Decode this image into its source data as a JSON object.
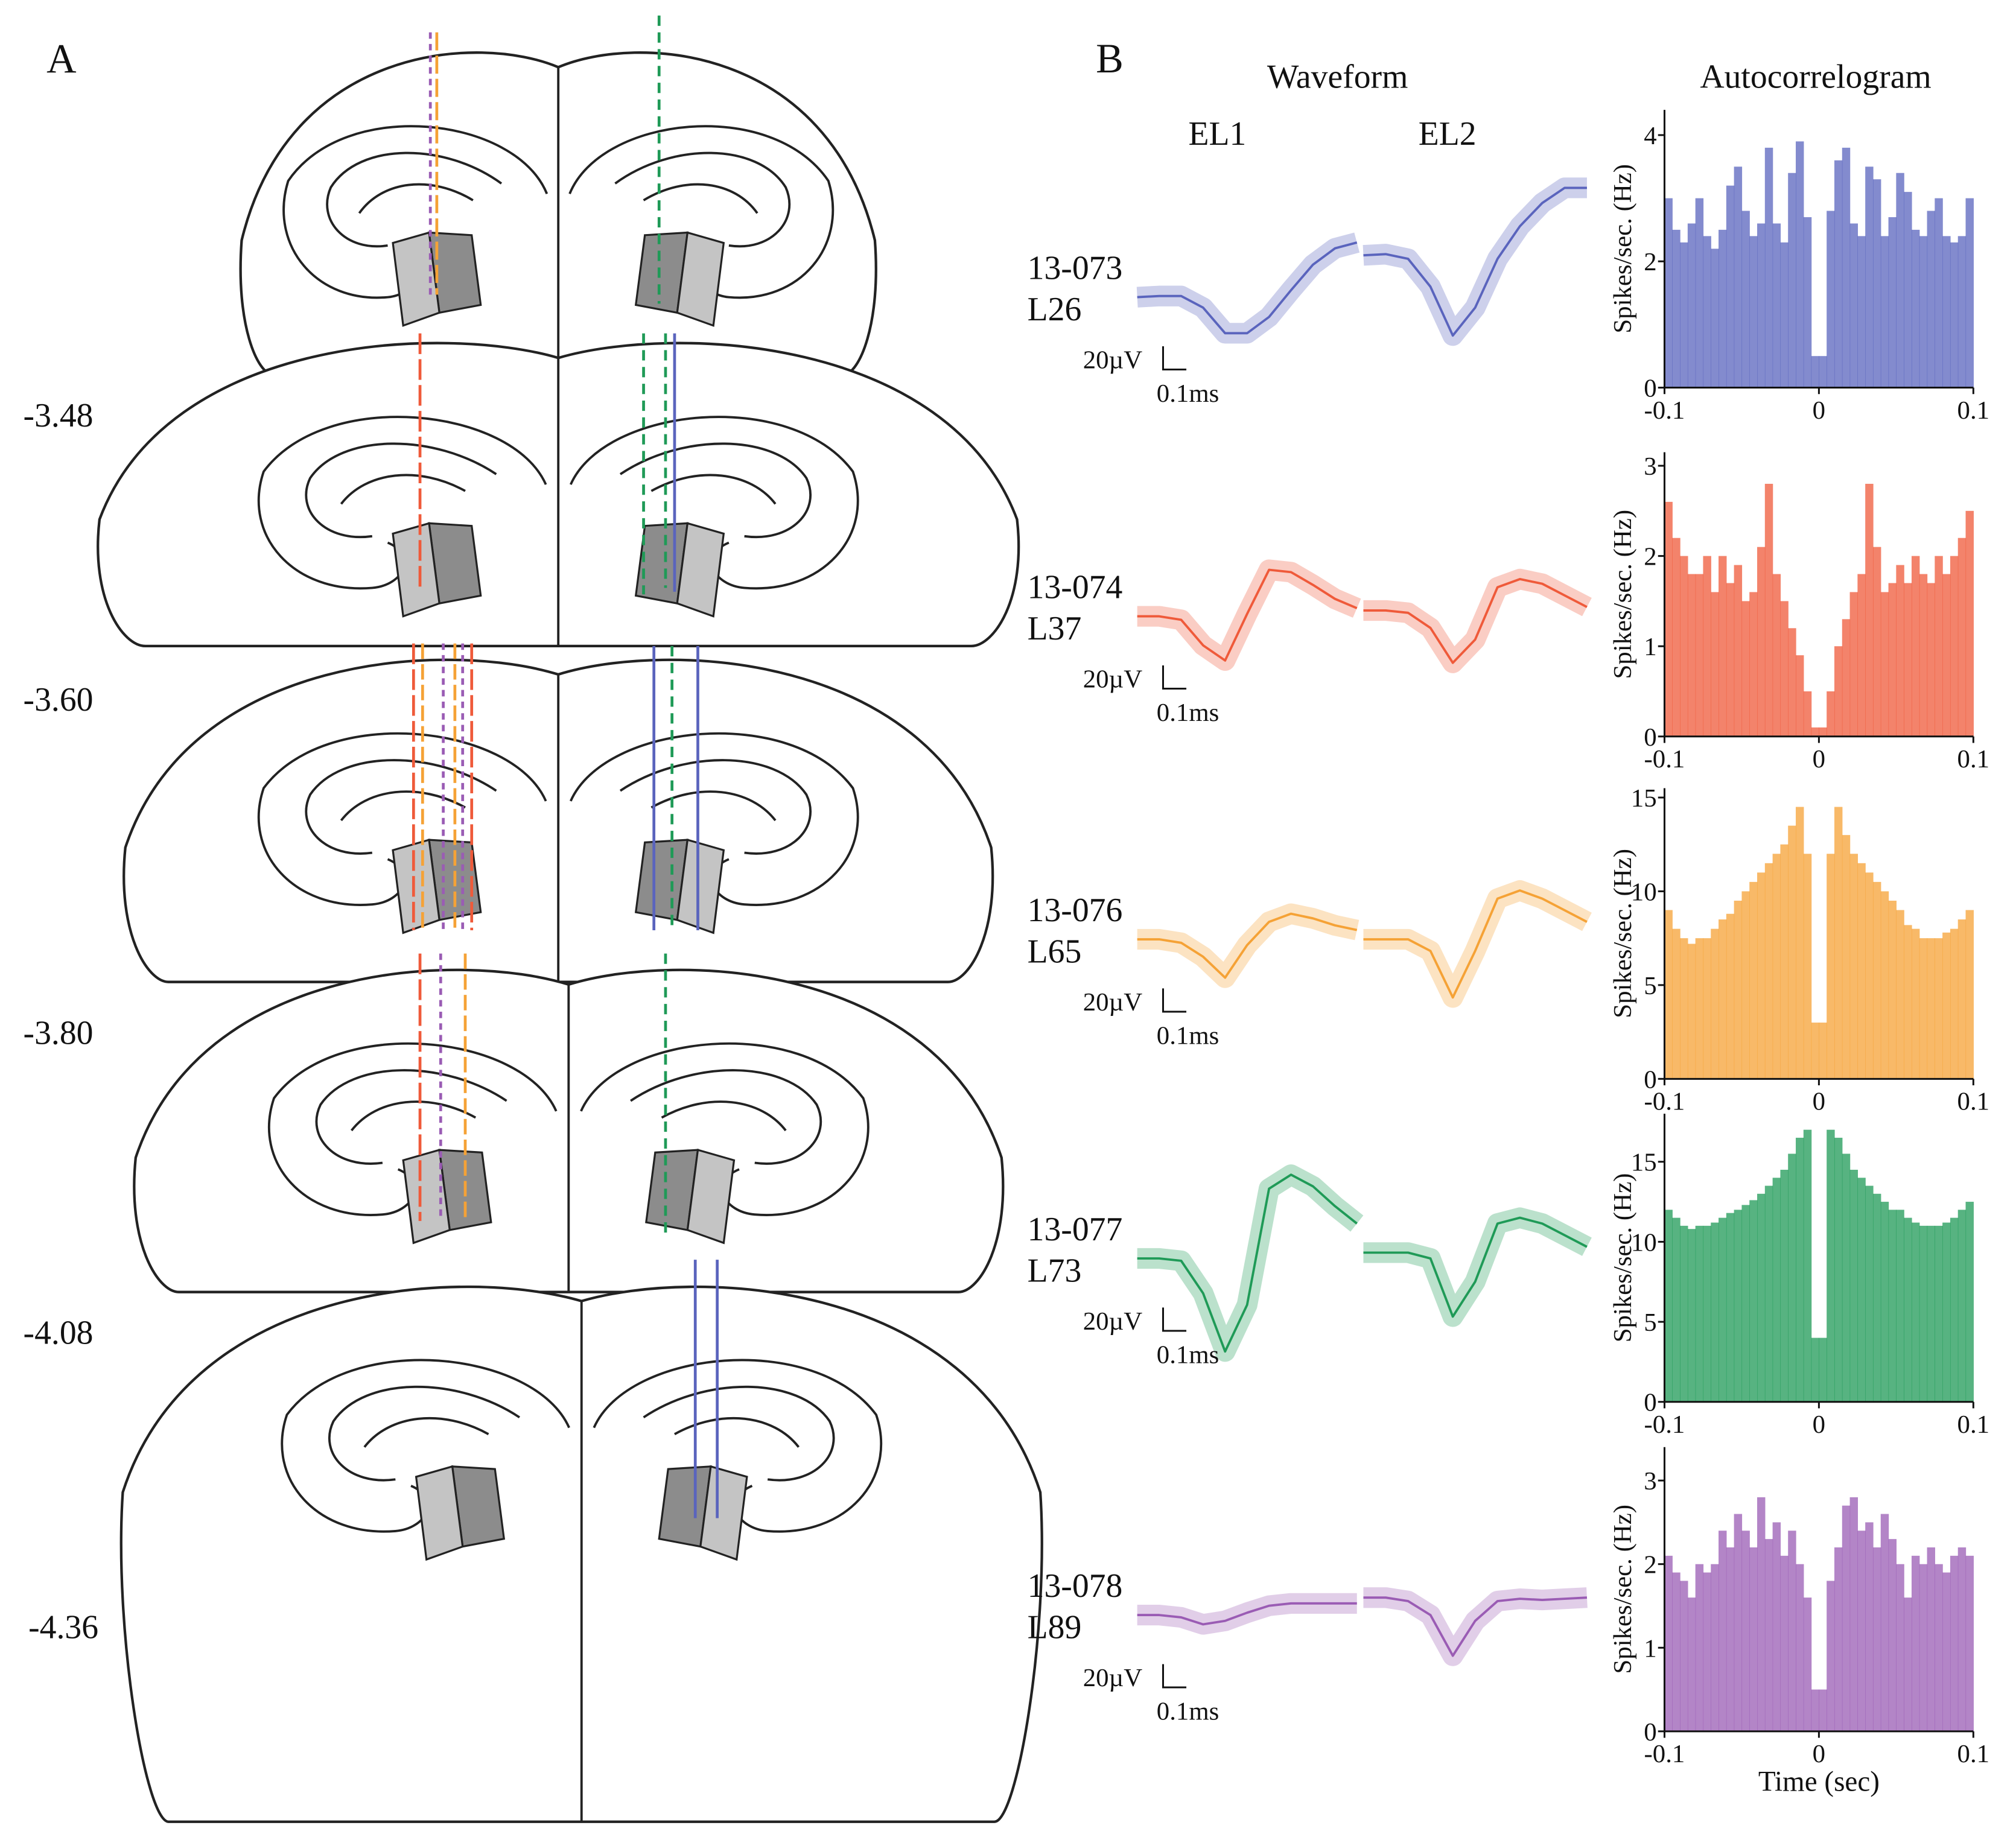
{
  "panel_a": {
    "label": "A",
    "depths": [
      "-3.48",
      "-3.60",
      "-3.80",
      "-4.08",
      "-4.36"
    ]
  },
  "panel_b": {
    "label": "B",
    "waveform_title": "Waveform",
    "electrodes": [
      "EL1",
      "EL2"
    ],
    "autocorrelogram_title": "Autocorrelogram",
    "scale_bar": {
      "voltage": "20µV",
      "time": "0.1ms"
    },
    "units": [
      {
        "id": "13-073",
        "label": "L26",
        "waveform_el1": [
          0,
          1,
          1,
          -9,
          -31,
          -31,
          -17,
          6,
          28,
          42,
          47
        ],
        "waveform_el2": [
          36,
          37,
          33,
          9,
          -33,
          -9,
          33,
          61,
          81,
          94,
          94
        ]
      },
      {
        "id": "13-074",
        "label": "L37",
        "waveform_el1": [
          0,
          0,
          -3,
          -25,
          -38,
          2,
          40,
          38,
          27,
          15,
          7
        ],
        "waveform_el2": [
          5,
          5,
          3,
          -10,
          -40,
          -20,
          25,
          32,
          28,
          18,
          8
        ]
      },
      {
        "id": "13-076",
        "label": "L65",
        "waveform_el1": [
          0,
          0,
          -3,
          -15,
          -33,
          -5,
          15,
          22,
          18,
          12,
          8
        ],
        "waveform_el2": [
          0,
          0,
          0,
          -10,
          -50,
          -10,
          35,
          42,
          35,
          25,
          15
        ]
      },
      {
        "id": "13-077",
        "label": "L73",
        "waveform_el1": [
          0,
          0,
          -2,
          -30,
          -80,
          -40,
          60,
          72,
          62,
          45,
          30
        ],
        "waveform_el2": [
          5,
          5,
          5,
          0,
          -50,
          -20,
          30,
          35,
          30,
          20,
          10
        ]
      },
      {
        "id": "13-078",
        "label": "L89",
        "waveform_el1": [
          0,
          0,
          -2,
          -8,
          -5,
          2,
          8,
          10,
          10,
          10,
          10
        ],
        "waveform_el2": [
          15,
          15,
          12,
          0,
          -35,
          -5,
          12,
          14,
          13,
          14,
          15
        ]
      }
    ]
  },
  "chart_data": [
    {
      "type": "histogram",
      "color": "#5a64bd",
      "y_label": "Spikes/sec. (Hz)",
      "bins": [
        -0.1,
        -0.095,
        -0.09,
        -0.085,
        -0.08,
        -0.075,
        -0.07,
        -0.065,
        -0.06,
        -0.055,
        -0.05,
        -0.045,
        -0.04,
        -0.035,
        -0.03,
        -0.025,
        -0.02,
        -0.015,
        -0.01,
        -0.005,
        0,
        0.005,
        0.01,
        0.015,
        0.02,
        0.025,
        0.03,
        0.035,
        0.04,
        0.045,
        0.05,
        0.055,
        0.06,
        0.065,
        0.07,
        0.075,
        0.08,
        0.085,
        0.09,
        0.095,
        0.1
      ],
      "values": [
        3.0,
        2.5,
        2.3,
        2.6,
        3.0,
        2.4,
        2.2,
        2.5,
        3.2,
        3.5,
        2.8,
        2.4,
        2.6,
        3.8,
        2.6,
        2.3,
        3.4,
        3.9,
        2.7,
        0.5,
        0.5,
        2.8,
        3.6,
        3.8,
        2.6,
        2.4,
        3.5,
        3.3,
        2.4,
        2.7,
        3.4,
        3.1,
        2.5,
        2.4,
        2.8,
        3.0,
        2.4,
        2.3,
        2.4,
        3.0
      ],
      "xlim": [
        -0.1,
        0.1
      ],
      "xticks": [
        -0.1,
        0,
        0.1
      ],
      "ylim": [
        0,
        4.4
      ],
      "yticks": [
        0,
        2,
        4
      ]
    },
    {
      "type": "histogram",
      "color": "#ef5a3a",
      "y_label": "Spikes/sec. (Hz)",
      "bins": [
        -0.1,
        -0.095,
        -0.09,
        -0.085,
        -0.08,
        -0.075,
        -0.07,
        -0.065,
        -0.06,
        -0.055,
        -0.05,
        -0.045,
        -0.04,
        -0.035,
        -0.03,
        -0.025,
        -0.02,
        -0.015,
        -0.01,
        -0.005,
        0,
        0.005,
        0.01,
        0.015,
        0.02,
        0.025,
        0.03,
        0.035,
        0.04,
        0.045,
        0.05,
        0.055,
        0.06,
        0.065,
        0.07,
        0.075,
        0.08,
        0.085,
        0.09,
        0.095,
        0.1
      ],
      "values": [
        2.6,
        2.2,
        2.0,
        1.8,
        1.8,
        2.0,
        1.6,
        2.0,
        1.7,
        1.9,
        1.5,
        1.6,
        2.1,
        2.8,
        1.8,
        1.5,
        1.2,
        0.9,
        0.5,
        0.1,
        0.1,
        0.5,
        1.0,
        1.3,
        1.6,
        1.8,
        2.8,
        2.1,
        1.6,
        1.7,
        1.9,
        1.7,
        2.0,
        1.8,
        1.7,
        2.0,
        1.8,
        2.0,
        2.2,
        2.5
      ],
      "xlim": [
        -0.1,
        0.1
      ],
      "xticks": [
        -0.1,
        0,
        0.1
      ],
      "ylim": [
        0,
        3.15
      ],
      "yticks": [
        0,
        1,
        2,
        3
      ]
    },
    {
      "type": "histogram",
      "color": "#f5a236",
      "y_label": "Spikes/sec. (Hz)",
      "bins": [
        -0.1,
        -0.095,
        -0.09,
        -0.085,
        -0.08,
        -0.075,
        -0.07,
        -0.065,
        -0.06,
        -0.055,
        -0.05,
        -0.045,
        -0.04,
        -0.035,
        -0.03,
        -0.025,
        -0.02,
        -0.015,
        -0.01,
        -0.005,
        0,
        0.005,
        0.01,
        0.015,
        0.02,
        0.025,
        0.03,
        0.035,
        0.04,
        0.045,
        0.05,
        0.055,
        0.06,
        0.065,
        0.07,
        0.075,
        0.08,
        0.085,
        0.09,
        0.095,
        0.1
      ],
      "values": [
        9,
        8,
        7.5,
        7.2,
        7.5,
        7.5,
        8,
        8.5,
        8.8,
        9.5,
        10,
        10.5,
        11,
        11.5,
        12,
        12.5,
        13.5,
        14.5,
        12,
        3,
        3,
        12,
        14.5,
        13,
        12,
        11.5,
        11,
        10.5,
        10,
        9.5,
        9,
        8.2,
        8,
        7.5,
        7.5,
        7.5,
        7.8,
        8,
        8.5,
        9
      ],
      "xlim": [
        -0.1,
        0.1
      ],
      "xticks": [
        -0.1,
        0,
        0.1
      ],
      "ylim": [
        0,
        15.5
      ],
      "yticks": [
        0,
        5,
        10,
        15
      ]
    },
    {
      "type": "histogram",
      "color": "#1f9a57",
      "y_label": "Spikes/sec. (Hz)",
      "bins": [
        -0.1,
        -0.095,
        -0.09,
        -0.085,
        -0.08,
        -0.075,
        -0.07,
        -0.065,
        -0.06,
        -0.055,
        -0.05,
        -0.045,
        -0.04,
        -0.035,
        -0.03,
        -0.025,
        -0.02,
        -0.015,
        -0.01,
        -0.005,
        0,
        0.005,
        0.01,
        0.015,
        0.02,
        0.025,
        0.03,
        0.035,
        0.04,
        0.045,
        0.05,
        0.055,
        0.06,
        0.065,
        0.07,
        0.075,
        0.08,
        0.085,
        0.09,
        0.095,
        0.1
      ],
      "values": [
        12,
        11.5,
        11,
        10.8,
        11,
        11,
        11.2,
        11.5,
        11.8,
        12,
        12.3,
        12.6,
        13,
        13.5,
        14,
        14.5,
        15.5,
        16.5,
        17,
        4,
        4,
        17,
        16.5,
        15.5,
        14.5,
        14,
        13.5,
        13,
        12.5,
        12,
        12,
        11.5,
        11.2,
        11,
        11,
        11,
        11.2,
        11.5,
        12,
        12.5
      ],
      "xlim": [
        -0.1,
        0.1
      ],
      "xticks": [
        -0.1,
        0,
        0.1
      ],
      "ylim": [
        0,
        18
      ],
      "yticks": [
        0,
        5,
        10,
        15
      ]
    },
    {
      "type": "histogram",
      "color": "#9a5cb4",
      "y_label": "Spikes/sec. (Hz)",
      "x_label": "Time (sec)",
      "bins": [
        -0.1,
        -0.095,
        -0.09,
        -0.085,
        -0.08,
        -0.075,
        -0.07,
        -0.065,
        -0.06,
        -0.055,
        -0.05,
        -0.045,
        -0.04,
        -0.035,
        -0.03,
        -0.025,
        -0.02,
        -0.015,
        -0.01,
        -0.005,
        0,
        0.005,
        0.01,
        0.015,
        0.02,
        0.025,
        0.03,
        0.035,
        0.04,
        0.045,
        0.05,
        0.055,
        0.06,
        0.065,
        0.07,
        0.075,
        0.08,
        0.085,
        0.09,
        0.095,
        0.1
      ],
      "values": [
        2.1,
        1.9,
        1.8,
        1.6,
        2.0,
        1.9,
        2.0,
        2.4,
        2.2,
        2.6,
        2.4,
        2.2,
        2.8,
        2.3,
        2.5,
        2.1,
        2.4,
        2.0,
        1.6,
        0.5,
        0.5,
        1.8,
        2.2,
        2.7,
        2.8,
        2.4,
        2.5,
        2.2,
        2.6,
        2.3,
        2.0,
        1.6,
        2.1,
        2.0,
        2.2,
        2.0,
        1.9,
        2.1,
        2.2,
        2.1
      ],
      "xlim": [
        -0.1,
        0.1
      ],
      "xticks": [
        -0.1,
        0,
        0.1
      ],
      "ylim": [
        0,
        3.4
      ],
      "yticks": [
        0,
        1,
        2,
        3
      ]
    }
  ]
}
